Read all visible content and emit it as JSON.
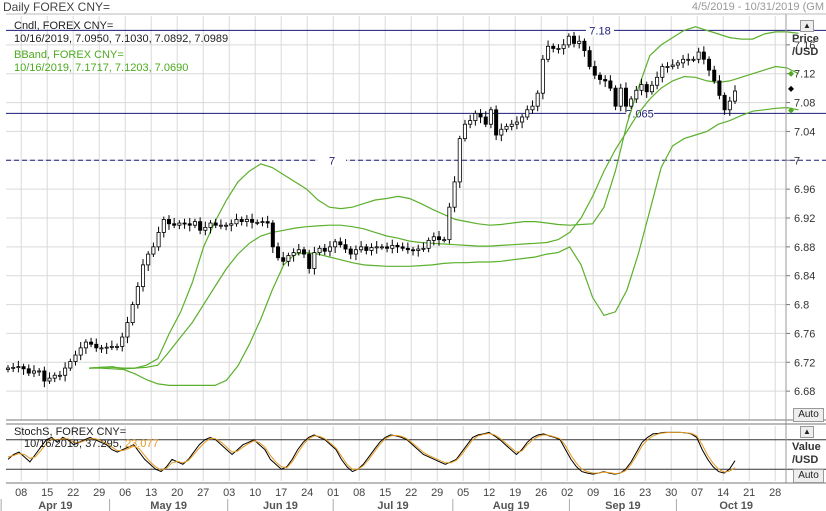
{
  "header": {
    "title": "Daily FOREX CNY=",
    "range": "4/5/2019 - 10/31/2019",
    "range_tail": "(GM"
  },
  "legend": {
    "cndl_name": "Cndl, FOREX CNY=",
    "cndl_values": "10/16/2019, 7.0950, 7.1030, 7.0892, 7.0989",
    "bband_name": "BBand, FOREX CNY=",
    "bband_values": "10/16/2019, 7.1717, 7.1203, 7.0690",
    "stoch_name": "StochS, FOREX CNY=",
    "stoch_date": "10/16/2019,",
    "stoch_k": "37.295,",
    "stoch_d": "23.077"
  },
  "axis": {
    "price_label": "Price",
    "price_unit": "/USD",
    "value_label": "Value",
    "value_unit": "/USD",
    "auto_label": "Auto"
  },
  "colors": {
    "candle": "#000000",
    "bband": "#5bb02c",
    "stoch_k": "#000000",
    "stoch_d": "#e49a1f",
    "hline": "#1b1b7a",
    "grid": "#d9d9d9"
  },
  "chart_data": [
    {
      "type": "candlestick",
      "title": "Daily FOREX CNY=",
      "ylabel": "Price /USD",
      "ylim": [
        6.64,
        7.2
      ],
      "y_ticks": [
        6.68,
        6.72,
        6.76,
        6.8,
        6.84,
        6.88,
        6.92,
        6.96,
        7,
        7.04,
        7.08,
        7.12,
        7.16
      ],
      "y_tick_labels": [
        "6.68",
        "6.72",
        "6.76",
        "6.8",
        "6.84",
        "6.88",
        "6.92",
        "6.96",
        "7",
        "7.04",
        "7.08",
        "7.12",
        "7.16"
      ],
      "x_tick_labels": [
        "08",
        "15",
        "22",
        "29",
        "06",
        "13",
        "20",
        "27",
        "03",
        "10",
        "17",
        "24",
        "01",
        "08",
        "15",
        "22",
        "29",
        "05",
        "12",
        "19",
        "26",
        "02",
        "09",
        "16",
        "23",
        "30",
        "07",
        "14",
        "21",
        "28"
      ],
      "month_labels": [
        "Apr 19",
        "May 19",
        "Jun 19",
        "Jul 19",
        "Aug 19",
        "Sep 19",
        "Oct 19"
      ],
      "horizontal_lines": [
        {
          "value": 7.18,
          "label": "7.18",
          "style": "solid"
        },
        {
          "value": 7.065,
          "label": "7.065",
          "style": "solid"
        },
        {
          "value": 7,
          "label": "7",
          "style": "dashed"
        }
      ],
      "close": [
        6.712,
        6.713,
        6.714,
        6.711,
        6.705,
        6.708,
        6.708,
        6.694,
        6.698,
        6.702,
        6.702,
        6.712,
        6.721,
        6.73,
        6.74,
        6.748,
        6.745,
        6.74,
        6.74,
        6.741,
        6.742,
        6.742,
        6.755,
        6.775,
        6.8,
        6.825,
        6.855,
        6.87,
        6.88,
        6.9,
        6.918,
        6.912,
        6.91,
        6.913,
        6.912,
        6.91,
        6.915,
        6.903,
        6.907,
        6.913,
        6.91,
        6.91,
        6.91,
        6.912,
        6.918,
        6.915,
        6.918,
        6.914,
        6.914,
        6.915,
        6.913,
        6.88,
        6.865,
        6.86,
        6.868,
        6.872,
        6.876,
        6.87,
        6.85,
        6.872,
        6.878,
        6.874,
        6.88,
        6.887,
        6.883,
        6.877,
        6.87,
        6.876,
        6.88,
        6.875,
        6.879,
        6.88,
        6.88,
        6.878,
        6.882,
        6.88,
        6.878,
        6.876,
        6.875,
        6.877,
        6.878,
        6.889,
        6.894,
        6.89,
        6.89,
        6.935,
        6.97,
        7.03,
        7.05,
        7.055,
        7.065,
        7.06,
        7.05,
        7.07,
        7.035,
        7.043,
        7.047,
        7.05,
        7.053,
        7.06,
        7.07,
        7.075,
        7.093,
        7.14,
        7.158,
        7.155,
        7.155,
        7.16,
        7.172,
        7.162,
        7.165,
        7.152,
        7.13,
        7.118,
        7.112,
        7.11,
        7.1,
        7.075,
        7.1,
        7.075,
        7.085,
        7.097,
        7.105,
        7.095,
        7.104,
        7.115,
        7.13,
        7.13,
        7.132,
        7.135,
        7.14,
        7.14,
        7.14,
        7.15,
        7.14,
        7.125,
        7.11,
        7.09,
        7.07,
        7.082,
        7.096
      ],
      "bband_upper_start": "2019-04-29",
      "bband_upper": [
        6.712,
        6.713,
        6.714,
        6.711,
        6.712,
        6.716,
        6.725,
        6.76,
        6.79,
        6.83,
        6.88,
        6.915,
        6.945,
        6.97,
        6.985,
        6.995,
        6.99,
        6.98,
        6.97,
        6.96,
        6.945,
        6.935,
        6.933,
        6.935,
        6.94,
        6.945,
        6.947,
        6.95,
        6.947,
        6.94,
        6.932,
        6.925,
        6.918,
        6.915,
        6.912,
        6.91,
        6.911,
        6.913,
        6.915,
        6.915,
        6.913,
        6.911,
        6.91,
        6.911,
        6.912,
        6.935,
        6.985,
        7.05,
        7.1,
        7.145,
        7.16,
        7.17,
        7.18,
        7.185,
        7.18,
        7.175,
        7.17,
        7.168,
        7.168,
        7.175,
        7.178,
        7.178,
        7.176
      ],
      "bband_middle_start": "2019-04-29",
      "bband_middle": [
        6.712,
        6.713,
        6.713,
        6.712,
        6.712,
        6.713,
        6.716,
        6.735,
        6.755,
        6.775,
        6.8,
        6.825,
        6.85,
        6.87,
        6.885,
        6.895,
        6.9,
        6.903,
        6.906,
        6.908,
        6.909,
        6.91,
        6.91,
        6.908,
        6.905,
        6.9,
        6.895,
        6.892,
        6.888,
        6.886,
        6.885,
        6.884,
        6.883,
        6.882,
        6.881,
        6.881,
        6.882,
        6.883,
        6.884,
        6.885,
        6.886,
        6.89,
        6.9,
        6.92,
        6.95,
        6.985,
        7.015,
        7.04,
        7.065,
        7.085,
        7.1,
        7.11,
        7.116,
        7.115,
        7.11,
        7.108,
        7.11,
        7.115,
        7.12,
        7.125,
        7.13,
        7.128,
        7.12
      ],
      "bband_lower_start": "2019-04-29",
      "bband_lower": [
        6.712,
        6.712,
        6.711,
        6.71,
        6.704,
        6.696,
        6.69,
        6.688,
        6.688,
        6.688,
        6.688,
        6.688,
        6.695,
        6.715,
        6.745,
        6.78,
        6.82,
        6.855,
        6.87,
        6.872,
        6.87,
        6.866,
        6.862,
        6.858,
        6.855,
        6.854,
        6.853,
        6.853,
        6.853,
        6.854,
        6.855,
        6.857,
        6.858,
        6.858,
        6.859,
        6.859,
        6.86,
        6.862,
        6.864,
        6.866,
        6.87,
        6.872,
        6.88,
        6.855,
        6.81,
        6.785,
        6.79,
        6.82,
        6.87,
        6.93,
        6.99,
        7.02,
        7.03,
        7.035,
        7.04,
        7.05,
        7.055,
        7.062,
        7.068,
        7.07,
        7.072,
        7.073,
        7.07
      ]
    },
    {
      "type": "line",
      "title": "StochS, FOREX CNY=",
      "ylabel": "Value /USD",
      "series": [
        {
          "name": "%K",
          "values": [
            40,
            50,
            55,
            45,
            35,
            50,
            65,
            80,
            85,
            75,
            85,
            80,
            70,
            75,
            80,
            85,
            80,
            75,
            70,
            60,
            55,
            60,
            65,
            70,
            55,
            40,
            30,
            20,
            15,
            25,
            40,
            35,
            30,
            40,
            55,
            70,
            80,
            85,
            80,
            70,
            60,
            50,
            60,
            70,
            75,
            80,
            70,
            60,
            40,
            30,
            20,
            25,
            40,
            60,
            75,
            85,
            90,
            85,
            80,
            70,
            60,
            40,
            25,
            15,
            20,
            30,
            45,
            60,
            75,
            85,
            90,
            88,
            85,
            80,
            70,
            60,
            50,
            45,
            40,
            35,
            30,
            35,
            40,
            55,
            70,
            85,
            90,
            92,
            95,
            88,
            80,
            70,
            60,
            50,
            60,
            75,
            85,
            90,
            92,
            88,
            85,
            80,
            60,
            40,
            25,
            15,
            12,
            10,
            12,
            15,
            12,
            10,
            12,
            20,
            35,
            55,
            75,
            85,
            92,
            93,
            95,
            95,
            95,
            95,
            94,
            92,
            85,
            60,
            40,
            25,
            15,
            12,
            20,
            37.295
          ]
        },
        {
          "name": "%D",
          "values": [
            45,
            48,
            52,
            50,
            42,
            45,
            58,
            72,
            82,
            80,
            82,
            82,
            75,
            74,
            78,
            82,
            82,
            78,
            73,
            65,
            58,
            58,
            62,
            67,
            62,
            48,
            35,
            25,
            18,
            22,
            33,
            36,
            33,
            38,
            50,
            63,
            75,
            83,
            82,
            75,
            65,
            55,
            57,
            65,
            72,
            78,
            74,
            65,
            48,
            35,
            25,
            23,
            35,
            53,
            70,
            82,
            88,
            87,
            82,
            73,
            63,
            47,
            30,
            20,
            20,
            27,
            40,
            55,
            70,
            82,
            88,
            89,
            87,
            82,
            73,
            64,
            54,
            48,
            43,
            38,
            33,
            33,
            38,
            50,
            65,
            80,
            88,
            91,
            93,
            90,
            83,
            74,
            64,
            55,
            57,
            70,
            80,
            87,
            90,
            89,
            86,
            82,
            68,
            48,
            32,
            20,
            15,
            12,
            12,
            14,
            13,
            11,
            12,
            17,
            30,
            48,
            68,
            80,
            88,
            92,
            94,
            95,
            95,
            95,
            94,
            93,
            88,
            70,
            48,
            32,
            20,
            14,
            16,
            23.077
          ]
        }
      ]
    }
  ]
}
